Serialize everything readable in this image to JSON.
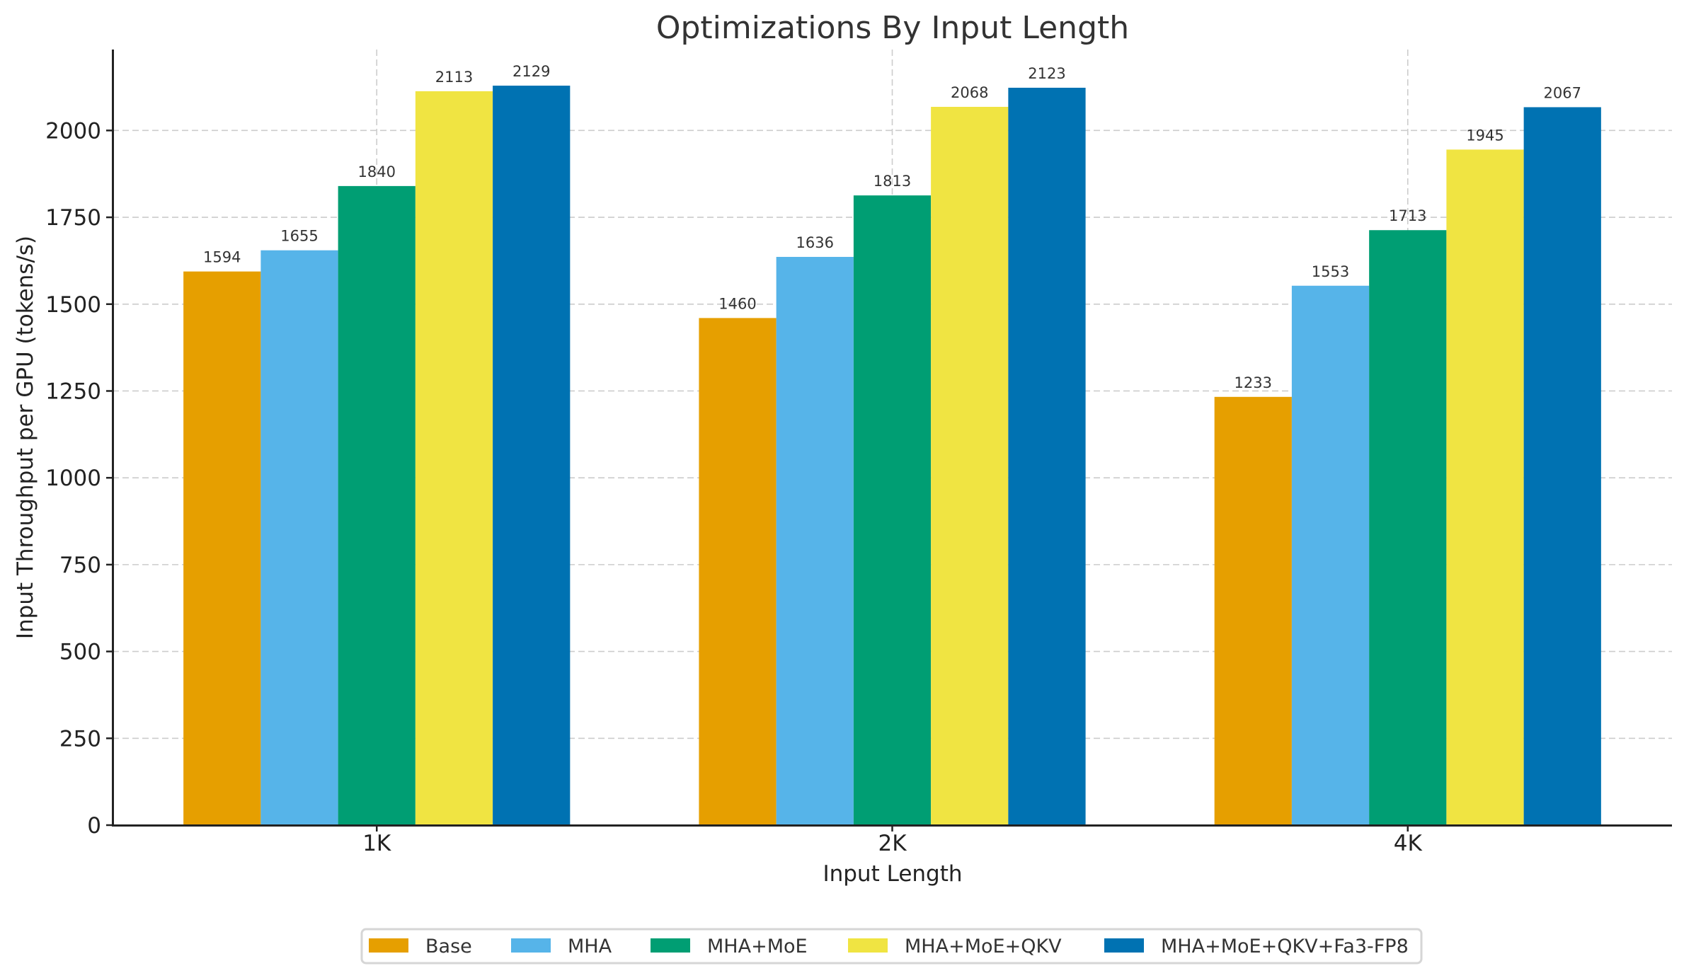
{
  "chart_data": {
    "type": "bar",
    "title": "Optimizations By Input Length",
    "xlabel": "Input Length",
    "ylabel": "Input Throughput per GPU (tokens/s)",
    "categories": [
      "1K",
      "2K",
      "4K"
    ],
    "ylim": [
      0,
      2233
    ],
    "yticks": [
      0,
      250,
      500,
      750,
      1000,
      1250,
      1500,
      1750,
      2000
    ],
    "ytick_labels": [
      "0",
      "250",
      "500",
      "750",
      "1000",
      "1250",
      "1500",
      "1750",
      "2000"
    ],
    "grid": true,
    "legend_position": "bottom-center",
    "series": [
      {
        "name": "Base",
        "color": "#E69F00",
        "values": [
          1594,
          1460,
          1233
        ],
        "labels": [
          "1594",
          "1460",
          "1233"
        ]
      },
      {
        "name": "MHA",
        "color": "#56B4E9",
        "values": [
          1655,
          1636,
          1553
        ],
        "labels": [
          "1655",
          "1636",
          "1553"
        ]
      },
      {
        "name": "MHA+MoE",
        "color": "#009E73",
        "values": [
          1840,
          1813,
          1713
        ],
        "labels": [
          "1840",
          "1813",
          "1713"
        ]
      },
      {
        "name": "MHA+MoE+QKV",
        "color": "#F0E442",
        "values": [
          2113,
          2068,
          1945
        ],
        "labels": [
          "2113",
          "2068",
          "1945"
        ]
      },
      {
        "name": "MHA+MoE+QKV+Fa3-FP8",
        "color": "#0072B2",
        "values": [
          2129,
          2123,
          2067
        ],
        "labels": [
          "2129",
          "2123",
          "2067"
        ]
      }
    ]
  }
}
